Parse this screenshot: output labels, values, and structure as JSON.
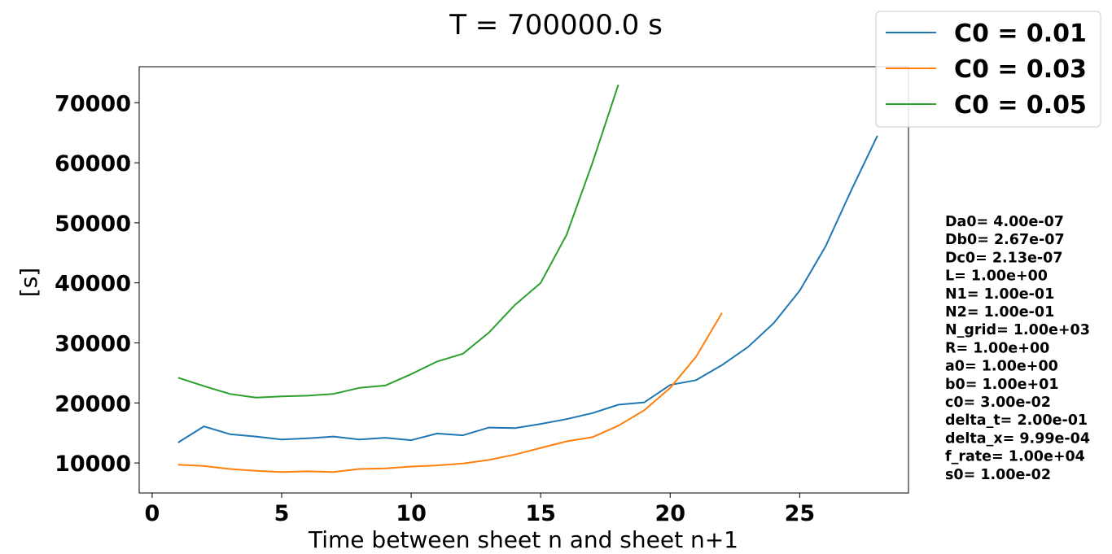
{
  "chart_data": {
    "type": "line",
    "title": "T = 700000.0 s",
    "xlabel": "Time between sheet n and sheet n+1",
    "ylabel": "[s]",
    "xlim": [
      -0.5,
      29.2
    ],
    "ylim": [
      5000,
      76000
    ],
    "xticks": [
      0,
      5,
      10,
      15,
      20,
      25
    ],
    "yticks": [
      10000,
      20000,
      30000,
      40000,
      50000,
      60000,
      70000
    ],
    "grid": false,
    "legend_position": "top-right",
    "series": [
      {
        "name": "C0 = 0.01",
        "color": "#1f77b4",
        "x": [
          1,
          2,
          3,
          4,
          5,
          6,
          7,
          8,
          9,
          10,
          11,
          12,
          13,
          14,
          15,
          16,
          17,
          18,
          19,
          20,
          21,
          22,
          23,
          24,
          25,
          26,
          27,
          28
        ],
        "values": [
          13400,
          16100,
          14800,
          14400,
          13900,
          14100,
          14400,
          13900,
          14200,
          13800,
          14900,
          14600,
          15900,
          15800,
          16500,
          17300,
          18300,
          19700,
          20100,
          23000,
          23800,
          26300,
          29300,
          33300,
          38700,
          46100,
          55500,
          64500
        ]
      },
      {
        "name": "C0 = 0.03",
        "color": "#ff7f0e",
        "x": [
          1,
          2,
          3,
          4,
          5,
          6,
          7,
          8,
          9,
          10,
          11,
          12,
          13,
          14,
          15,
          16,
          17,
          18,
          19,
          20,
          21,
          22
        ],
        "values": [
          9700,
          9500,
          9000,
          8700,
          8500,
          8600,
          8500,
          9000,
          9100,
          9400,
          9600,
          9900,
          10500,
          11400,
          12500,
          13600,
          14300,
          16200,
          18800,
          22500,
          27700,
          35000
        ]
      },
      {
        "name": "C0 = 0.05",
        "color": "#2ca02c",
        "x": [
          1,
          2,
          3,
          4,
          5,
          6,
          7,
          8,
          9,
          10,
          11,
          12,
          13,
          14,
          15,
          16,
          17,
          18
        ],
        "values": [
          24200,
          22800,
          21500,
          20900,
          21100,
          21200,
          21500,
          22500,
          22900,
          24800,
          26900,
          28200,
          31700,
          36300,
          40000,
          48000,
          60000,
          73000
        ]
      }
    ]
  },
  "parameters": [
    "Da0= 4.00e-07",
    "Db0= 2.67e-07",
    "Dc0= 2.13e-07",
    "L= 1.00e+00",
    "N1= 1.00e-01",
    "N2= 1.00e-01",
    "N_grid= 1.00e+03",
    "R= 1.00e+00",
    "a0= 1.00e+00",
    "b0= 1.00e+01",
    "c0= 3.00e-02",
    "delta_t= 2.00e-01",
    "delta_x= 9.99e-04",
    "f_rate= 1.00e+04",
    "s0= 1.00e-02"
  ]
}
